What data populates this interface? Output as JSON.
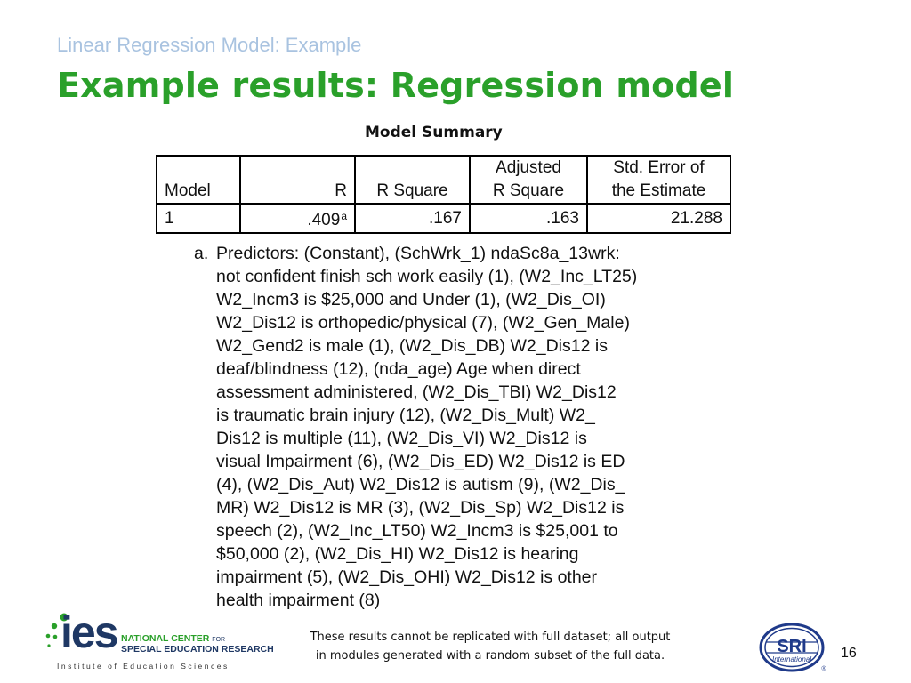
{
  "slide": {
    "pre_title": "Linear Regression Model: Example",
    "title": "Example results: Regression model",
    "page_number": "16"
  },
  "model_summary": {
    "caption": "Model Summary",
    "headers": {
      "model": "Model",
      "r": "R",
      "r_square": "R Square",
      "adjusted_r_square_line1": "Adjusted",
      "adjusted_r_square_line2": "R Square",
      "std_error_line1": "Std. Error of",
      "std_error_line2": "the Estimate"
    },
    "rows": [
      {
        "model": "1",
        "r": ".409",
        "r_footnote": "a",
        "r_square": ".167",
        "adjusted_r_square": ".163",
        "std_error": "21.288"
      }
    ],
    "footnote_marker": "a.",
    "footnote_text": "Predictors: (Constant), (SchWrk_1) ndaSc8a_13wrk:\nnot confident finish sch work easily (1), (W2_Inc_LT25)\nW2_Incm3 is $25,000 and Under (1), (W2_Dis_OI)\nW2_Dis12 is orthopedic/physical (7), (W2_Gen_Male)\nW2_Gend2 is male (1), (W2_Dis_DB) W2_Dis12 is\ndeaf/blindness (12), (nda_age) Age when direct\nassessment administered, (W2_Dis_TBI) W2_Dis12\nis traumatic brain injury (12), (W2_Dis_Mult) W2_\nDis12 is multiple (11), (W2_Dis_VI) W2_Dis12 is\nvisual Impairment (6), (W2_Dis_ED) W2_Dis12 is ED\n(4), (W2_Dis_Aut) W2_Dis12 is autism (9), (W2_Dis_\nMR) W2_Dis12 is MR (3), (W2_Dis_Sp) W2_Dis12 is\nspeech (2), (W2_Inc_LT50) W2_Incm3 is $25,001 to\n$50,000 (2), (W2_Dis_HI) W2_Dis12 is hearing\nimpairment (5), (W2_Dis_OHI) W2_Dis12 is other\nhealth impairment (8)"
  },
  "footer": {
    "disclaimer_line1": "These results cannot be replicated with full dataset; all output",
    "disclaimer_line2": "in modules generated with a random subset of the full data."
  },
  "ies_logo": {
    "wordmark": "ies",
    "line1": "NATIONAL CENTER",
    "line1_small": "FOR",
    "line2": "SPECIAL EDUCATION RESEARCH",
    "subtitle": "Institute of Education Sciences"
  },
  "sri_logo": {
    "wordmark": "SRI",
    "subtext": "International",
    "registered": "®"
  },
  "colors": {
    "title_green": "#2aa02a",
    "pre_title_blue": "#a9c3e0",
    "ies_navy": "#1f3864",
    "sri_blue": "#1f3a8a"
  }
}
